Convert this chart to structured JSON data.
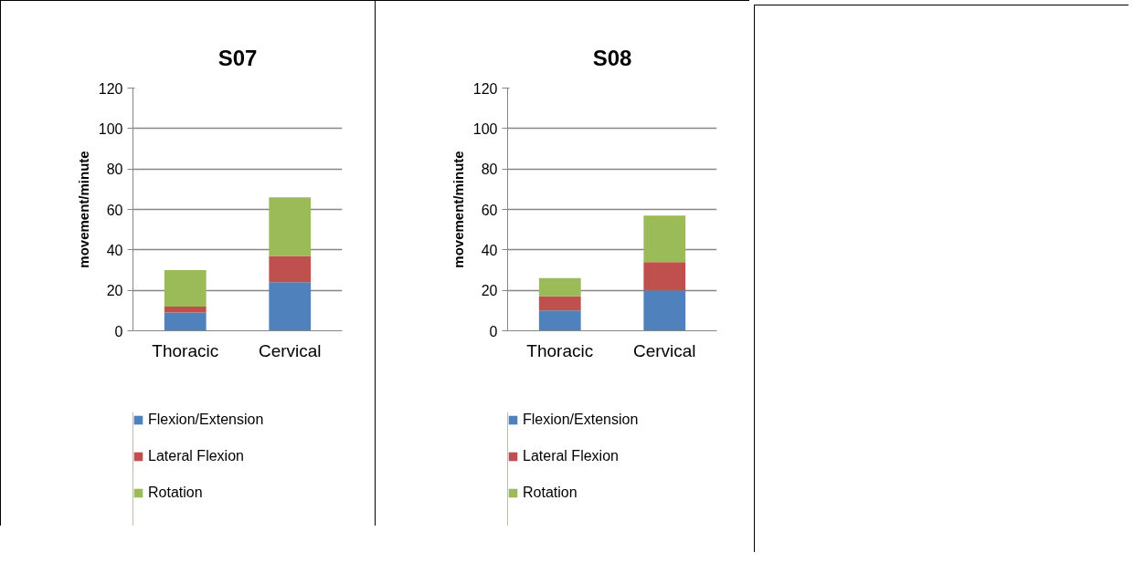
{
  "chart_data": [
    {
      "type": "bar",
      "title": "S07",
      "ylabel": "movement/minute",
      "categories": [
        "Thoracic",
        "Cervical"
      ],
      "stacked": true,
      "ylim": [
        0,
        120
      ],
      "yticks": [
        0,
        20,
        40,
        60,
        80,
        100,
        120
      ],
      "grid": "y",
      "legend": "bottom",
      "series": [
        {
          "name": "Flexion/Extension",
          "color": "#4f81bd",
          "values": [
            9,
            24
          ]
        },
        {
          "name": "Lateral Flexion",
          "color": "#c0504d",
          "values": [
            3,
            13
          ]
        },
        {
          "name": "Rotation",
          "color": "#9bbb59",
          "values": [
            18,
            29
          ]
        }
      ]
    },
    {
      "type": "bar",
      "title": "S08",
      "ylabel": "movement/minute",
      "categories": [
        "Thoracic",
        "Cervical"
      ],
      "stacked": true,
      "ylim": [
        0,
        120
      ],
      "yticks": [
        0,
        20,
        40,
        60,
        80,
        100,
        120
      ],
      "grid": "y",
      "legend": "bottom",
      "series": [
        {
          "name": "Flexion/Extension",
          "color": "#4f81bd",
          "values": [
            10,
            20
          ]
        },
        {
          "name": "Lateral Flexion",
          "color": "#c0504d",
          "values": [
            7,
            14
          ]
        },
        {
          "name": "Rotation",
          "color": "#9bbb59",
          "values": [
            9,
            23
          ]
        }
      ]
    }
  ]
}
